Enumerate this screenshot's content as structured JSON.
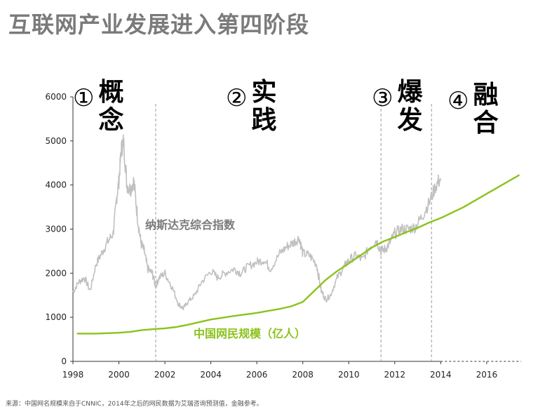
{
  "title": "互联网产业发展进入第四阶段",
  "footnote": "来源：中国网名规模来自于CNNIC，2014年之后的网民数据为艾瑞咨询预测值，金融参考。",
  "phases": [
    {
      "num": "①",
      "label": "概念",
      "style": "gray"
    },
    {
      "num": "②",
      "label": "实践",
      "style": "gray"
    },
    {
      "num": "③",
      "label": "爆发",
      "style": "gray"
    },
    {
      "num": "④",
      "label": "融合",
      "style": "green"
    }
  ],
  "colors": {
    "nasdaq": "#c0c0c0",
    "netizens": "#8cc21c",
    "axis": "#333333",
    "divider": "#999999",
    "phase_gray": "#6b6b6b",
    "phase_green": "#8cc21c"
  },
  "chart_data": {
    "type": "line",
    "title": "互联网产业发展进入第四阶段",
    "xlim": [
      1998,
      2017.5
    ],
    "ylim": [
      0,
      6000
    ],
    "x_ticks": [
      "1998",
      "2000",
      "2002",
      "2004",
      "2006",
      "2008",
      "2010",
      "2012",
      "2014",
      "2016"
    ],
    "y_ticks": [
      "0",
      "1000",
      "2000",
      "3000",
      "4000",
      "5000",
      "6000"
    ],
    "phase_dividers": [
      2001.6,
      2011.4,
      2013.6
    ],
    "grid": false,
    "series": [
      {
        "name": "纳斯达克综合指数",
        "x": [
          1998.0,
          1998.25,
          1998.5,
          1998.75,
          1999.0,
          1999.25,
          1999.5,
          1999.75,
          1999.9,
          2000.0,
          2000.1,
          2000.2,
          2000.35,
          2000.5,
          2000.65,
          2000.8,
          2000.95,
          2001.1,
          2001.25,
          2001.45,
          2001.6,
          2001.75,
          2002.0,
          2002.3,
          2002.6,
          2002.8,
          2003.0,
          2003.3,
          2003.6,
          2004.0,
          2004.3,
          2004.6,
          2005.0,
          2005.3,
          2005.6,
          2006.0,
          2006.3,
          2006.6,
          2007.0,
          2007.3,
          2007.6,
          2007.85,
          2008.0,
          2008.3,
          2008.6,
          2008.8,
          2009.0,
          2009.2,
          2009.5,
          2009.8,
          2010.0,
          2010.3,
          2010.6,
          2010.9,
          2011.2,
          2011.4,
          2011.6,
          2011.8,
          2012.0,
          2012.3,
          2012.6,
          2012.9,
          2013.2,
          2013.5,
          2013.8,
          2014.0
        ],
        "values": [
          1570,
          1800,
          1900,
          1600,
          2200,
          2450,
          2700,
          2900,
          3700,
          4100,
          4800,
          5000,
          4000,
          3900,
          4100,
          3300,
          2700,
          2500,
          2100,
          2000,
          1700,
          1900,
          2000,
          1700,
          1300,
          1200,
          1350,
          1500,
          1800,
          2050,
          1900,
          2000,
          2100,
          2000,
          2150,
          2250,
          2300,
          2100,
          2450,
          2600,
          2700,
          2800,
          2450,
          2400,
          2200,
          1600,
          1400,
          1500,
          1900,
          2150,
          2300,
          2400,
          2300,
          2600,
          2750,
          2500,
          2550,
          2700,
          2900,
          3000,
          3000,
          3050,
          3300,
          3600,
          4000,
          4150
        ]
      },
      {
        "name": "中国网民规模（亿人）",
        "x": [
          1998.2,
          1999.0,
          2000.0,
          2000.5,
          2001.0,
          2001.5,
          2002.0,
          2002.5,
          2003.0,
          2004.0,
          2005.0,
          2006.0,
          2007.0,
          2007.5,
          2008.0,
          2008.5,
          2009.0,
          2009.5,
          2010.0,
          2010.5,
          2011.0,
          2011.5,
          2012.0,
          2012.5,
          2013.0,
          2013.5,
          2014.0,
          2015.0,
          2016.0,
          2017.4
        ],
        "values": [
          630,
          630,
          650,
          670,
          710,
          730,
          750,
          780,
          830,
          950,
          1030,
          1100,
          1190,
          1250,
          1350,
          1600,
          1850,
          2050,
          2220,
          2400,
          2580,
          2720,
          2820,
          2930,
          3030,
          3150,
          3250,
          3500,
          3800,
          4220
        ]
      }
    ]
  }
}
